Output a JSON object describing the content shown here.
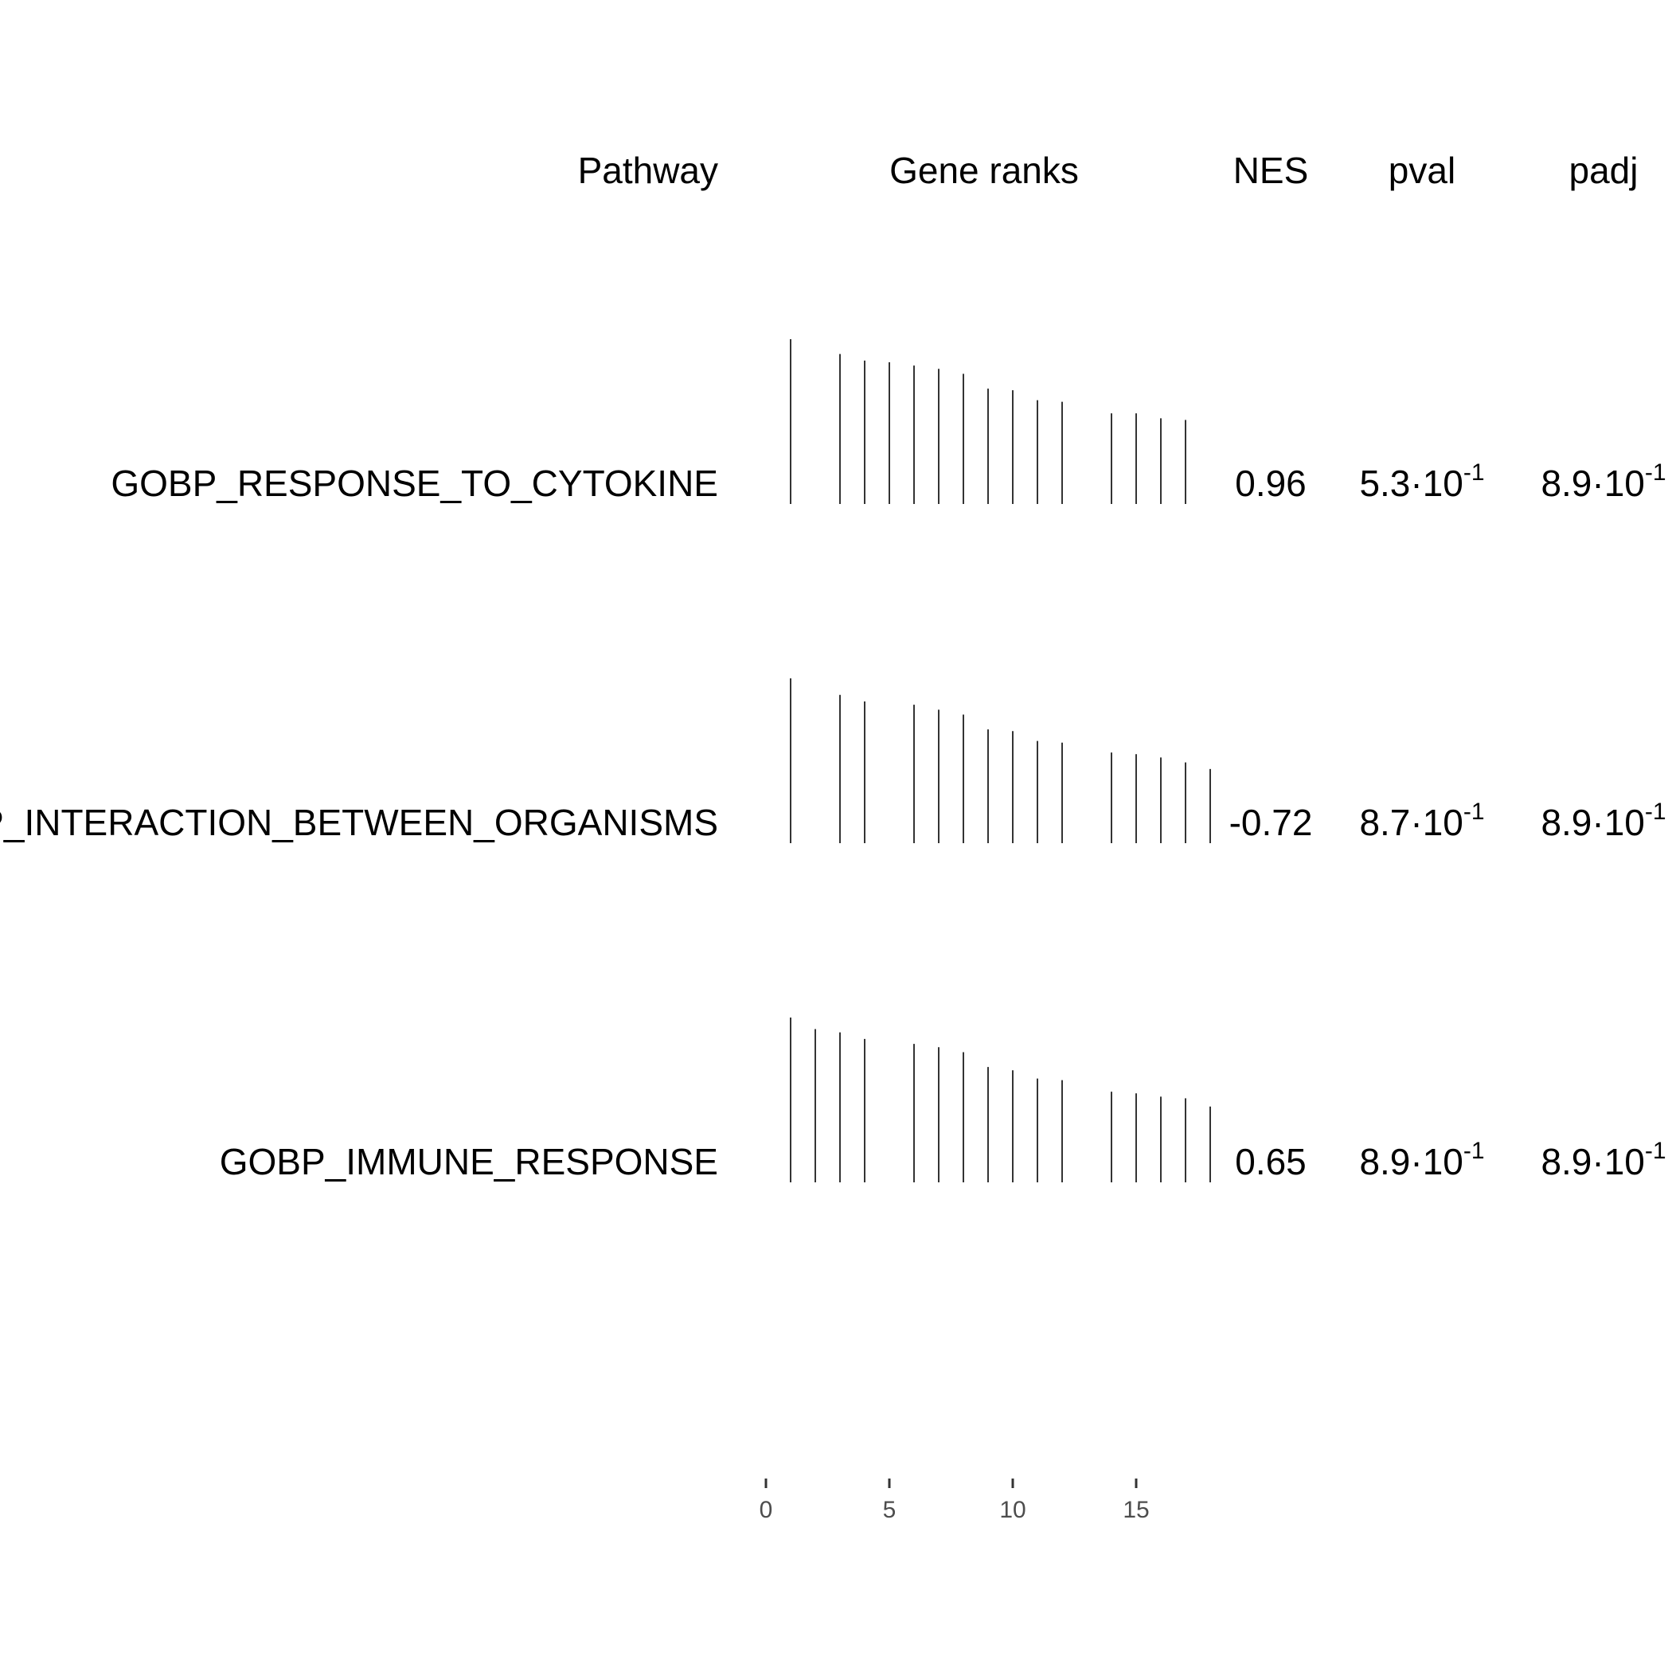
{
  "chart_data": {
    "type": "table",
    "columns": [
      "Pathway",
      "Gene ranks",
      "NES",
      "pval",
      "padj"
    ],
    "x_axis": {
      "ticks": [
        0,
        5,
        10,
        15
      ],
      "tick_labels": [
        "0",
        "5",
        "10",
        "15"
      ]
    },
    "rows": [
      {
        "pathway": "GOBP_RESPONSE_TO_CYTOKINE",
        "nes": "0.96",
        "pval": {
          "mantissa": "5.3·10",
          "exp": "-1"
        },
        "padj": {
          "mantissa": "8.9·10",
          "exp": "-1"
        },
        "ranks": [
          1,
          3,
          4,
          5,
          6,
          7,
          8,
          9,
          10,
          11,
          12,
          14,
          15,
          16,
          17
        ],
        "scores": [
          1.0,
          0.91,
          0.87,
          0.86,
          0.84,
          0.82,
          0.79,
          0.7,
          0.69,
          0.63,
          0.62,
          0.55,
          0.55,
          0.52,
          0.51
        ]
      },
      {
        "pathway": "GOBP_INTERACTION_BETWEEN_ORGANISMS",
        "nes": "-0.72",
        "pval": {
          "mantissa": "8.7·10",
          "exp": "-1"
        },
        "padj": {
          "mantissa": "8.9·10",
          "exp": "-1"
        },
        "ranks": [
          1,
          3,
          4,
          6,
          7,
          8,
          9,
          10,
          11,
          12,
          14,
          15,
          16,
          17,
          18
        ],
        "scores": [
          1.0,
          0.9,
          0.86,
          0.84,
          0.81,
          0.78,
          0.69,
          0.68,
          0.62,
          0.61,
          0.55,
          0.54,
          0.52,
          0.49,
          0.45
        ]
      },
      {
        "pathway": "GOBP_IMMUNE_RESPONSE",
        "nes": "0.65",
        "pval": {
          "mantissa": "8.9·10",
          "exp": "-1"
        },
        "padj": {
          "mantissa": "8.9·10",
          "exp": "-1"
        },
        "ranks": [
          1,
          2,
          3,
          4,
          6,
          7,
          8,
          9,
          10,
          11,
          12,
          14,
          15,
          16,
          17,
          18
        ],
        "scores": [
          1.0,
          0.93,
          0.91,
          0.87,
          0.84,
          0.82,
          0.79,
          0.7,
          0.68,
          0.63,
          0.62,
          0.55,
          0.54,
          0.52,
          0.51,
          0.46
        ]
      }
    ]
  }
}
